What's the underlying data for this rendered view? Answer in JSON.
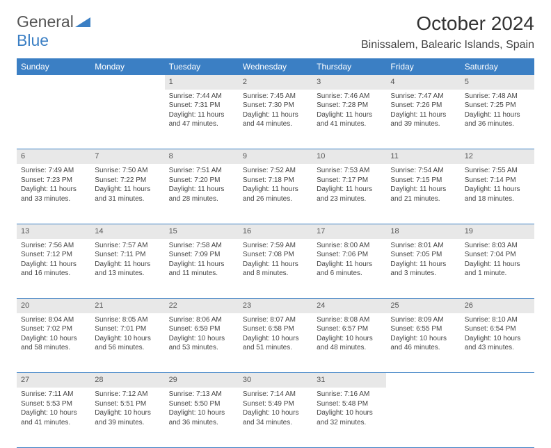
{
  "brand": {
    "name1": "General",
    "name2": "Blue",
    "color_accent": "#3b7fc4"
  },
  "title": "October 2024",
  "location": "Binissalem, Balearic Islands, Spain",
  "day_headers": [
    "Sunday",
    "Monday",
    "Tuesday",
    "Wednesday",
    "Thursday",
    "Friday",
    "Saturday"
  ],
  "weeks": [
    [
      null,
      null,
      {
        "d": "1",
        "sr": "Sunrise: 7:44 AM",
        "ss": "Sunset: 7:31 PM",
        "dl1": "Daylight: 11 hours",
        "dl2": "and 47 minutes."
      },
      {
        "d": "2",
        "sr": "Sunrise: 7:45 AM",
        "ss": "Sunset: 7:30 PM",
        "dl1": "Daylight: 11 hours",
        "dl2": "and 44 minutes."
      },
      {
        "d": "3",
        "sr": "Sunrise: 7:46 AM",
        "ss": "Sunset: 7:28 PM",
        "dl1": "Daylight: 11 hours",
        "dl2": "and 41 minutes."
      },
      {
        "d": "4",
        "sr": "Sunrise: 7:47 AM",
        "ss": "Sunset: 7:26 PM",
        "dl1": "Daylight: 11 hours",
        "dl2": "and 39 minutes."
      },
      {
        "d": "5",
        "sr": "Sunrise: 7:48 AM",
        "ss": "Sunset: 7:25 PM",
        "dl1": "Daylight: 11 hours",
        "dl2": "and 36 minutes."
      }
    ],
    [
      {
        "d": "6",
        "sr": "Sunrise: 7:49 AM",
        "ss": "Sunset: 7:23 PM",
        "dl1": "Daylight: 11 hours",
        "dl2": "and 33 minutes."
      },
      {
        "d": "7",
        "sr": "Sunrise: 7:50 AM",
        "ss": "Sunset: 7:22 PM",
        "dl1": "Daylight: 11 hours",
        "dl2": "and 31 minutes."
      },
      {
        "d": "8",
        "sr": "Sunrise: 7:51 AM",
        "ss": "Sunset: 7:20 PM",
        "dl1": "Daylight: 11 hours",
        "dl2": "and 28 minutes."
      },
      {
        "d": "9",
        "sr": "Sunrise: 7:52 AM",
        "ss": "Sunset: 7:18 PM",
        "dl1": "Daylight: 11 hours",
        "dl2": "and 26 minutes."
      },
      {
        "d": "10",
        "sr": "Sunrise: 7:53 AM",
        "ss": "Sunset: 7:17 PM",
        "dl1": "Daylight: 11 hours",
        "dl2": "and 23 minutes."
      },
      {
        "d": "11",
        "sr": "Sunrise: 7:54 AM",
        "ss": "Sunset: 7:15 PM",
        "dl1": "Daylight: 11 hours",
        "dl2": "and 21 minutes."
      },
      {
        "d": "12",
        "sr": "Sunrise: 7:55 AM",
        "ss": "Sunset: 7:14 PM",
        "dl1": "Daylight: 11 hours",
        "dl2": "and 18 minutes."
      }
    ],
    [
      {
        "d": "13",
        "sr": "Sunrise: 7:56 AM",
        "ss": "Sunset: 7:12 PM",
        "dl1": "Daylight: 11 hours",
        "dl2": "and 16 minutes."
      },
      {
        "d": "14",
        "sr": "Sunrise: 7:57 AM",
        "ss": "Sunset: 7:11 PM",
        "dl1": "Daylight: 11 hours",
        "dl2": "and 13 minutes."
      },
      {
        "d": "15",
        "sr": "Sunrise: 7:58 AM",
        "ss": "Sunset: 7:09 PM",
        "dl1": "Daylight: 11 hours",
        "dl2": "and 11 minutes."
      },
      {
        "d": "16",
        "sr": "Sunrise: 7:59 AM",
        "ss": "Sunset: 7:08 PM",
        "dl1": "Daylight: 11 hours",
        "dl2": "and 8 minutes."
      },
      {
        "d": "17",
        "sr": "Sunrise: 8:00 AM",
        "ss": "Sunset: 7:06 PM",
        "dl1": "Daylight: 11 hours",
        "dl2": "and 6 minutes."
      },
      {
        "d": "18",
        "sr": "Sunrise: 8:01 AM",
        "ss": "Sunset: 7:05 PM",
        "dl1": "Daylight: 11 hours",
        "dl2": "and 3 minutes."
      },
      {
        "d": "19",
        "sr": "Sunrise: 8:03 AM",
        "ss": "Sunset: 7:04 PM",
        "dl1": "Daylight: 11 hours",
        "dl2": "and 1 minute."
      }
    ],
    [
      {
        "d": "20",
        "sr": "Sunrise: 8:04 AM",
        "ss": "Sunset: 7:02 PM",
        "dl1": "Daylight: 10 hours",
        "dl2": "and 58 minutes."
      },
      {
        "d": "21",
        "sr": "Sunrise: 8:05 AM",
        "ss": "Sunset: 7:01 PM",
        "dl1": "Daylight: 10 hours",
        "dl2": "and 56 minutes."
      },
      {
        "d": "22",
        "sr": "Sunrise: 8:06 AM",
        "ss": "Sunset: 6:59 PM",
        "dl1": "Daylight: 10 hours",
        "dl2": "and 53 minutes."
      },
      {
        "d": "23",
        "sr": "Sunrise: 8:07 AM",
        "ss": "Sunset: 6:58 PM",
        "dl1": "Daylight: 10 hours",
        "dl2": "and 51 minutes."
      },
      {
        "d": "24",
        "sr": "Sunrise: 8:08 AM",
        "ss": "Sunset: 6:57 PM",
        "dl1": "Daylight: 10 hours",
        "dl2": "and 48 minutes."
      },
      {
        "d": "25",
        "sr": "Sunrise: 8:09 AM",
        "ss": "Sunset: 6:55 PM",
        "dl1": "Daylight: 10 hours",
        "dl2": "and 46 minutes."
      },
      {
        "d": "26",
        "sr": "Sunrise: 8:10 AM",
        "ss": "Sunset: 6:54 PM",
        "dl1": "Daylight: 10 hours",
        "dl2": "and 43 minutes."
      }
    ],
    [
      {
        "d": "27",
        "sr": "Sunrise: 7:11 AM",
        "ss": "Sunset: 5:53 PM",
        "dl1": "Daylight: 10 hours",
        "dl2": "and 41 minutes."
      },
      {
        "d": "28",
        "sr": "Sunrise: 7:12 AM",
        "ss": "Sunset: 5:51 PM",
        "dl1": "Daylight: 10 hours",
        "dl2": "and 39 minutes."
      },
      {
        "d": "29",
        "sr": "Sunrise: 7:13 AM",
        "ss": "Sunset: 5:50 PM",
        "dl1": "Daylight: 10 hours",
        "dl2": "and 36 minutes."
      },
      {
        "d": "30",
        "sr": "Sunrise: 7:14 AM",
        "ss": "Sunset: 5:49 PM",
        "dl1": "Daylight: 10 hours",
        "dl2": "and 34 minutes."
      },
      {
        "d": "31",
        "sr": "Sunrise: 7:16 AM",
        "ss": "Sunset: 5:48 PM",
        "dl1": "Daylight: 10 hours",
        "dl2": "and 32 minutes."
      },
      null,
      null
    ]
  ]
}
